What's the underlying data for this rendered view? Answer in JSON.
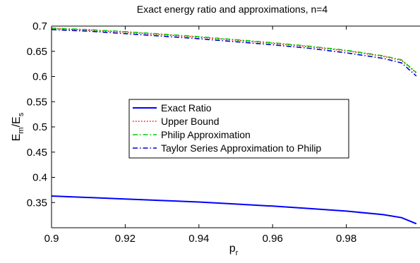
{
  "chart_data": {
    "type": "line",
    "title": "Exact energy ratio and approximations, n=4",
    "xlabel": {
      "main": "p",
      "sub": "r"
    },
    "ylabel": {
      "a": "E",
      "a_sub": "m",
      "slash": "/",
      "b": "E",
      "b_sub": "s"
    },
    "xlim": [
      0.9,
      1.0
    ],
    "ylim": [
      0.3,
      0.7
    ],
    "xticks": [
      0.9,
      0.92,
      0.94,
      0.96,
      0.98
    ],
    "xtick_labels": [
      "0.9",
      "0.92",
      "0.94",
      "0.96",
      "0.98"
    ],
    "yticks": [
      0.35,
      0.4,
      0.45,
      0.5,
      0.55,
      0.6,
      0.65,
      0.7
    ],
    "ytick_labels": [
      "0.35",
      "0.4",
      "0.45",
      "0.5",
      "0.55",
      "0.6",
      "0.65",
      "0.7"
    ],
    "grid": false,
    "legend_position": "center",
    "x": [
      0.9,
      0.91,
      0.92,
      0.93,
      0.94,
      0.95,
      0.96,
      0.97,
      0.98,
      0.99,
      0.995,
      0.999
    ],
    "series": [
      {
        "name": "Exact Ratio",
        "color": "#0000ff",
        "dash": "solid",
        "values": [
          0.363,
          0.36,
          0.357,
          0.354,
          0.351,
          0.347,
          0.343,
          0.338,
          0.333,
          0.326,
          0.32,
          0.308
        ]
      },
      {
        "name": "Upper Bound",
        "color": "#ff0000",
        "dash": "dotted",
        "values": [
          0.695,
          0.692,
          0.688,
          0.683,
          0.678,
          0.672,
          0.666,
          0.659,
          0.651,
          0.64,
          0.632,
          0.607
        ]
      },
      {
        "name": "Philip Approximation",
        "color": "#00cc00",
        "dash": "dashdot",
        "values": [
          0.696,
          0.693,
          0.689,
          0.684,
          0.679,
          0.673,
          0.667,
          0.66,
          0.652,
          0.641,
          0.633,
          0.608
        ]
      },
      {
        "name": "Taylor Series Approximation to Philip",
        "color": "#0000cc",
        "dash": "dashdot",
        "values": [
          0.693,
          0.69,
          0.685,
          0.68,
          0.675,
          0.669,
          0.663,
          0.656,
          0.647,
          0.636,
          0.627,
          0.601
        ]
      }
    ]
  }
}
